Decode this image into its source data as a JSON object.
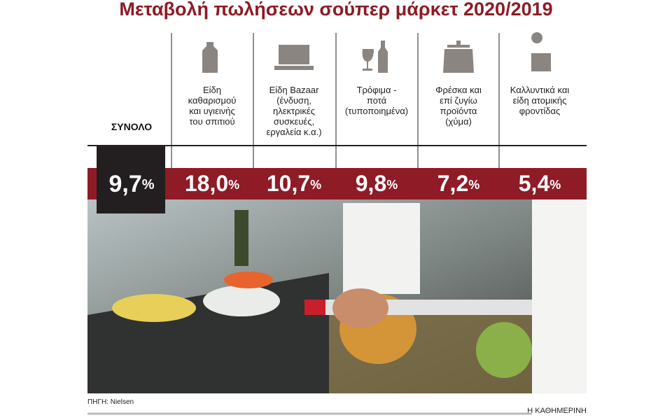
{
  "header": {
    "title": "Μεταβολή πωλήσεων σούπερ μάρκετ 2020/2019"
  },
  "total": {
    "label": "ΣΥΝΟΛΟ",
    "value": "9,7",
    "unit": "%"
  },
  "categories": [
    {
      "lines": [
        "Είδη",
        "καθαρισμού",
        "και υγιεινής",
        "του σπιτιού"
      ],
      "value": "18,0",
      "unit": "%"
    },
    {
      "lines": [
        "Είδη Bazaar",
        "(ένδυση,",
        "ηλεκτρικές",
        "συσκευές,",
        "εργαλεία κ.α.)"
      ],
      "value": "10,7",
      "unit": "%"
    },
    {
      "lines": [
        "Τρόφιμα -",
        "ποτά",
        "(τυποποιημένα)"
      ],
      "value": "9,8",
      "unit": "%"
    },
    {
      "lines": [
        "Φρέσκα και",
        "επί ζυγίω",
        "προϊόντα",
        "(χύμα)"
      ],
      "value": "7,2",
      "unit": "%"
    },
    {
      "lines": [
        "Καλλυντικά και",
        "είδη ατομικής",
        "φροντίδας"
      ],
      "value": "5,4",
      "unit": "%"
    }
  ],
  "footer": {
    "source": "ΠΗΓΗ: Nielsen",
    "brand": "Η ΚΑΘΗΜΕΡΙΝΗ"
  }
}
